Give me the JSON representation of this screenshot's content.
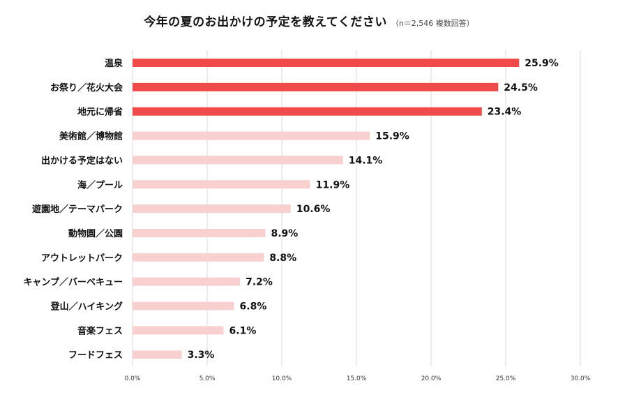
{
  "chart_data": {
    "type": "bar",
    "orientation": "horizontal",
    "title": "今年の夏のお出かけの予定を教えてください",
    "note": "（n＝2,546 複数回答）",
    "categories": [
      "温泉",
      "お祭り／花火大会",
      "地元に帰省",
      "美術館／博物館",
      "出かける予定はない",
      "海／プール",
      "遊園地／テーマパーク",
      "動物園／公園",
      "アウトレットパーク",
      "キャンプ／バーベキュー",
      "登山／ハイキング",
      "音楽フェス",
      "フードフェス"
    ],
    "values": [
      25.9,
      24.5,
      23.4,
      15.9,
      14.1,
      11.9,
      10.6,
      8.9,
      8.8,
      7.2,
      6.8,
      6.1,
      3.3
    ],
    "value_labels": [
      "25.9%",
      "24.5%",
      "23.4%",
      "15.9%",
      "14.1%",
      "11.9%",
      "10.6%",
      "8.9%",
      "8.8%",
      "7.2%",
      "6.8%",
      "6.1%",
      "3.3%"
    ],
    "highlight_count": 3,
    "xlim": [
      0,
      30
    ],
    "xticks": [
      0,
      5,
      10,
      15,
      20,
      25,
      30
    ],
    "xtick_labels": [
      "0.0%",
      "5.0%",
      "10.0%",
      "15.0%",
      "20.0%",
      "25.0%",
      "30.0%"
    ],
    "xlabel": "",
    "ylabel": "",
    "grid": true,
    "colors": {
      "highlight": "#f04a4a",
      "normal": "#f9d0d0",
      "grid": "#d9d9d9"
    }
  }
}
